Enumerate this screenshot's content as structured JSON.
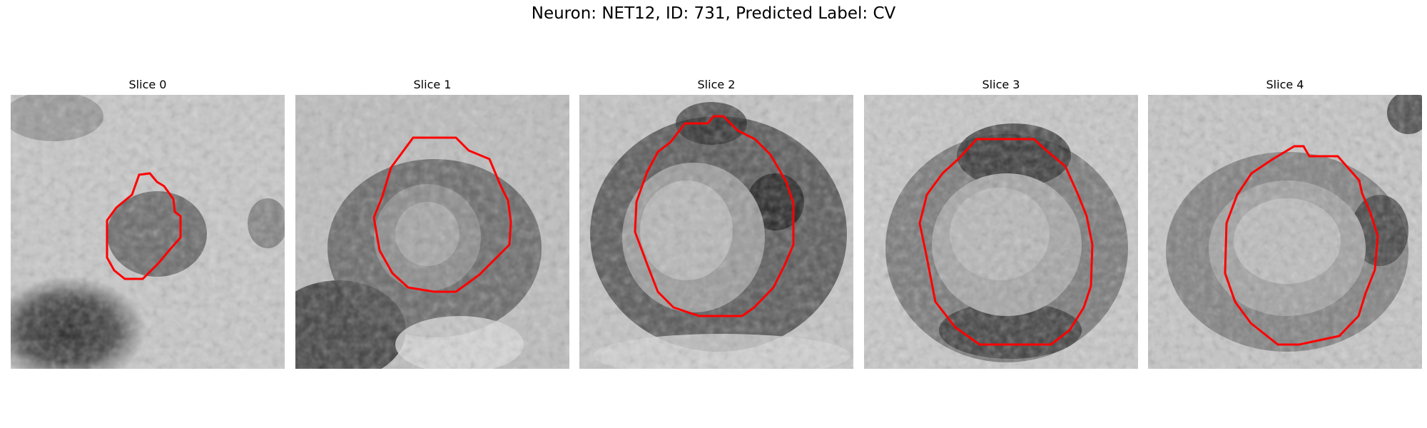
{
  "figure": {
    "title": "Neuron: NET12, ID: 731, Predicted Label: CV"
  },
  "panels": [
    {
      "title": "Slice 0",
      "contour_color": "#ff0000"
    },
    {
      "title": "Slice 1",
      "contour_color": "#ff0000"
    },
    {
      "title": "Slice 2",
      "contour_color": "#ff0000"
    },
    {
      "title": "Slice 3",
      "contour_color": "#ff0000"
    },
    {
      "title": "Slice 4",
      "contour_color": "#ff0000"
    }
  ],
  "image": {
    "type": "grayscale microscopy slices",
    "colormap": "gray",
    "contour_color": "#ff0000"
  }
}
